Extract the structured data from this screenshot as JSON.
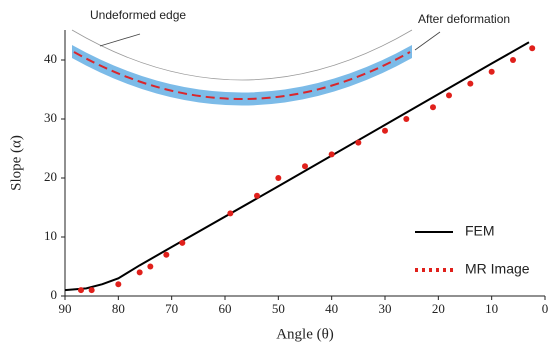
{
  "chart_data": {
    "type": "line",
    "xlabel": "Angle (θ)",
    "ylabel": "Slope (α)",
    "annotations": [
      "Undeformed edge",
      "After deformation"
    ],
    "xlim": [
      90,
      0
    ],
    "xticks": [
      90,
      80,
      70,
      60,
      50,
      40,
      30,
      20,
      10,
      0
    ],
    "ylim": [
      0,
      45
    ],
    "yticks": [
      0,
      10,
      20,
      30,
      40
    ],
    "legend": "lower right",
    "series": [
      {
        "name": "FEM",
        "color": "#000000",
        "mark": "line",
        "x": [
          90,
          86,
          83,
          80,
          76,
          70,
          50,
          30,
          10,
          3
        ],
        "values": [
          1,
          1.3,
          2,
          3,
          5.2,
          8.3,
          18.6,
          29,
          39.4,
          43
        ]
      },
      {
        "name": "MR Image",
        "color": "#e0201b",
        "mark": "dot",
        "x": [
          87,
          85,
          80,
          76,
          74,
          71,
          68,
          59,
          54,
          50,
          45,
          40,
          35,
          30,
          26,
          21,
          18,
          14,
          10,
          6,
          2.4
        ],
        "values": [
          1,
          1,
          2,
          4,
          5,
          7,
          9,
          14,
          17,
          20,
          22,
          24,
          26,
          28,
          30,
          32,
          34,
          36,
          38,
          40,
          42
        ]
      }
    ]
  }
}
